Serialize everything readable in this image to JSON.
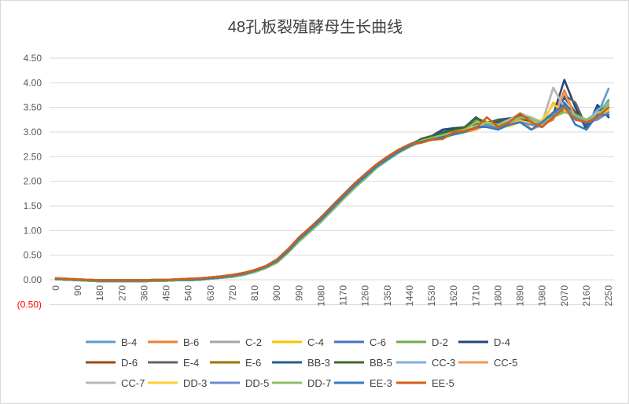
{
  "chart_data": {
    "type": "line",
    "title": "48孔板裂殖酵母生长曲线",
    "xlabel": "",
    "ylabel": "",
    "ylim": [
      -0.5,
      4.5
    ],
    "yticks": [
      "(0.50)",
      "0.00",
      "0.50",
      "1.00",
      "1.50",
      "2.00",
      "2.50",
      "3.00",
      "3.50",
      "4.00",
      "4.50"
    ],
    "ytick_values": [
      -0.5,
      0,
      0.5,
      1,
      1.5,
      2,
      2.5,
      3,
      3.5,
      4,
      4.5
    ],
    "negative_tick_color": "#FF0000",
    "xticks": [
      "0",
      "90",
      "180",
      "270",
      "360",
      "450",
      "540",
      "630",
      "720",
      "810",
      "900",
      "990",
      "1080",
      "1170",
      "1260",
      "1350",
      "1440",
      "1530",
      "1620",
      "1710",
      "1800",
      "1890",
      "1980",
      "2070",
      "2160",
      "2250"
    ],
    "x": [
      0,
      45,
      90,
      135,
      180,
      225,
      270,
      315,
      360,
      405,
      450,
      495,
      540,
      585,
      630,
      675,
      720,
      765,
      810,
      855,
      900,
      945,
      990,
      1035,
      1080,
      1125,
      1170,
      1215,
      1260,
      1305,
      1350,
      1395,
      1440,
      1485,
      1530,
      1575,
      1620,
      1665,
      1710,
      1755,
      1800,
      1845,
      1890,
      1935,
      1980,
      2025,
      2070,
      2115,
      2160,
      2205,
      2250
    ],
    "grid": true,
    "legend": "bottom",
    "series": [
      {
        "name": "B-4",
        "color": "#5B9BD5",
        "values": [
          0.02,
          0.01,
          0,
          -0.01,
          -0.02,
          -0.02,
          -0.02,
          -0.02,
          -0.02,
          -0.01,
          -0.01,
          0,
          0,
          0.01,
          0.03,
          0.05,
          0.08,
          0.12,
          0.18,
          0.26,
          0.38,
          0.58,
          0.82,
          1.02,
          1.22,
          1.45,
          1.68,
          1.9,
          2.1,
          2.3,
          2.45,
          2.6,
          2.72,
          2.82,
          2.9,
          2.95,
          3.02,
          3.08,
          3.15,
          3.12,
          3.1,
          3.2,
          3.22,
          3.15,
          3.2,
          3.35,
          3.6,
          3.3,
          3.2,
          3.35,
          3.88
        ]
      },
      {
        "name": "B-6",
        "color": "#ED7D31",
        "values": [
          0.03,
          0.02,
          0.01,
          0,
          -0.01,
          -0.01,
          -0.01,
          -0.01,
          -0.01,
          0,
          0,
          0.01,
          0.02,
          0.03,
          0.05,
          0.07,
          0.1,
          0.14,
          0.2,
          0.28,
          0.41,
          0.62,
          0.86,
          1.06,
          1.27,
          1.5,
          1.73,
          1.95,
          2.15,
          2.34,
          2.5,
          2.64,
          2.75,
          2.78,
          2.85,
          2.9,
          2.98,
          3.0,
          3.05,
          3.2,
          3.05,
          3.15,
          3.3,
          3.05,
          3.15,
          3.25,
          3.85,
          3.3,
          3.2,
          3.3,
          3.55
        ]
      },
      {
        "name": "C-2",
        "color": "#A5A5A5",
        "values": [
          0.01,
          0,
          -0.01,
          -0.02,
          -0.03,
          -0.03,
          -0.03,
          -0.03,
          -0.03,
          -0.02,
          -0.02,
          -0.01,
          -0.01,
          0,
          0.02,
          0.04,
          0.06,
          0.1,
          0.16,
          0.24,
          0.35,
          0.55,
          0.78,
          0.98,
          1.18,
          1.41,
          1.64,
          1.86,
          2.06,
          2.27,
          2.43,
          2.58,
          2.7,
          2.8,
          2.86,
          2.88,
          2.95,
          3.0,
          3.12,
          3.15,
          3.18,
          3.2,
          3.35,
          3.28,
          3.2,
          3.9,
          3.5,
          3.3,
          3.25,
          3.4,
          3.5
        ]
      },
      {
        "name": "C-4",
        "color": "#FFC000",
        "values": [
          0.02,
          0.01,
          0,
          -0.01,
          -0.02,
          -0.02,
          -0.02,
          -0.02,
          -0.02,
          -0.01,
          -0.01,
          0,
          0,
          0.01,
          0.03,
          0.05,
          0.08,
          0.12,
          0.18,
          0.26,
          0.38,
          0.58,
          0.82,
          1.02,
          1.22,
          1.45,
          1.68,
          1.9,
          2.1,
          2.3,
          2.45,
          2.6,
          2.72,
          2.81,
          2.88,
          2.93,
          3.0,
          3.06,
          3.1,
          3.18,
          3.1,
          3.12,
          3.2,
          3.22,
          3.15,
          3.6,
          3.45,
          3.35,
          3.2,
          3.3,
          3.6
        ]
      },
      {
        "name": "C-6",
        "color": "#4472C4",
        "values": [
          0.03,
          0.02,
          0.01,
          0,
          -0.01,
          -0.01,
          -0.01,
          -0.01,
          -0.01,
          0,
          0,
          0.01,
          0.02,
          0.03,
          0.05,
          0.07,
          0.1,
          0.14,
          0.2,
          0.28,
          0.41,
          0.62,
          0.86,
          1.06,
          1.27,
          1.5,
          1.73,
          1.95,
          2.15,
          2.34,
          2.5,
          2.64,
          2.75,
          2.79,
          2.87,
          2.9,
          2.98,
          3.04,
          3.08,
          3.14,
          3.08,
          3.15,
          3.22,
          3.18,
          3.1,
          3.4,
          3.6,
          3.3,
          3.15,
          3.28,
          3.45
        ]
      },
      {
        "name": "D-2",
        "color": "#70AD47",
        "values": [
          0.01,
          0,
          -0.01,
          -0.02,
          -0.03,
          -0.03,
          -0.03,
          -0.03,
          -0.03,
          -0.02,
          -0.02,
          -0.01,
          -0.01,
          0,
          0.02,
          0.04,
          0.06,
          0.1,
          0.16,
          0.24,
          0.35,
          0.55,
          0.78,
          0.98,
          1.18,
          1.41,
          1.64,
          1.86,
          2.06,
          2.27,
          2.43,
          2.58,
          2.7,
          2.83,
          2.9,
          2.95,
          3.02,
          3.05,
          3.25,
          3.2,
          3.15,
          3.2,
          3.3,
          3.25,
          3.2,
          3.3,
          3.45,
          3.35,
          3.2,
          3.35,
          3.65
        ]
      },
      {
        "name": "D-4",
        "color": "#264478",
        "values": [
          0.02,
          0.01,
          0,
          -0.01,
          -0.02,
          -0.02,
          -0.02,
          -0.02,
          -0.02,
          -0.01,
          -0.01,
          0,
          0,
          0.01,
          0.03,
          0.05,
          0.08,
          0.12,
          0.18,
          0.26,
          0.38,
          0.58,
          0.82,
          1.02,
          1.22,
          1.45,
          1.68,
          1.9,
          2.1,
          2.3,
          2.45,
          2.6,
          2.72,
          2.85,
          2.92,
          3.05,
          3.08,
          3.1,
          3.3,
          3.15,
          3.2,
          3.25,
          3.3,
          3.18,
          3.15,
          3.35,
          4.06,
          3.5,
          3.05,
          3.55,
          3.3
        ]
      },
      {
        "name": "D-6",
        "color": "#9E480E",
        "values": [
          0.03,
          0.02,
          0.01,
          0,
          -0.01,
          -0.01,
          -0.01,
          -0.01,
          -0.01,
          0,
          0,
          0.01,
          0.02,
          0.03,
          0.05,
          0.07,
          0.1,
          0.14,
          0.2,
          0.28,
          0.41,
          0.62,
          0.86,
          1.06,
          1.27,
          1.5,
          1.73,
          1.95,
          2.15,
          2.34,
          2.5,
          2.64,
          2.75,
          2.8,
          2.86,
          2.92,
          2.98,
          3.05,
          3.12,
          3.14,
          3.12,
          3.2,
          3.28,
          3.2,
          3.2,
          3.3,
          3.5,
          3.35,
          3.2,
          3.3,
          3.4
        ]
      },
      {
        "name": "E-4",
        "color": "#636363",
        "values": [
          0.01,
          0,
          -0.01,
          -0.02,
          -0.03,
          -0.03,
          -0.03,
          -0.03,
          -0.03,
          -0.02,
          -0.02,
          -0.01,
          -0.01,
          0,
          0.02,
          0.04,
          0.06,
          0.1,
          0.16,
          0.24,
          0.35,
          0.55,
          0.78,
          0.98,
          1.18,
          1.41,
          1.64,
          1.86,
          2.06,
          2.27,
          2.43,
          2.58,
          2.7,
          2.8,
          2.85,
          2.9,
          3.0,
          3.02,
          3.15,
          3.18,
          3.12,
          3.22,
          3.35,
          3.3,
          3.15,
          3.3,
          3.75,
          3.6,
          3.1,
          3.45,
          3.5
        ]
      },
      {
        "name": "E-6",
        "color": "#997300",
        "values": [
          0.02,
          0.01,
          0,
          -0.01,
          -0.02,
          -0.02,
          -0.02,
          -0.02,
          -0.02,
          -0.01,
          -0.01,
          0,
          0,
          0.01,
          0.03,
          0.05,
          0.08,
          0.12,
          0.18,
          0.26,
          0.38,
          0.58,
          0.82,
          1.02,
          1.22,
          1.45,
          1.68,
          1.9,
          2.1,
          2.3,
          2.45,
          2.6,
          2.72,
          2.82,
          2.88,
          2.93,
          3.0,
          3.06,
          3.1,
          3.16,
          3.14,
          3.2,
          3.25,
          3.22,
          3.2,
          3.3,
          3.5,
          3.35,
          3.25,
          3.35,
          3.45
        ]
      },
      {
        "name": "BB-3",
        "color": "#255E91",
        "values": [
          0.03,
          0.02,
          0.01,
          0,
          -0.01,
          -0.01,
          -0.01,
          -0.01,
          -0.01,
          0,
          0,
          0.01,
          0.02,
          0.03,
          0.05,
          0.07,
          0.1,
          0.14,
          0.2,
          0.28,
          0.41,
          0.62,
          0.86,
          1.06,
          1.27,
          1.5,
          1.73,
          1.95,
          2.15,
          2.34,
          2.5,
          2.64,
          2.75,
          2.84,
          2.9,
          3.0,
          3.05,
          3.1,
          3.2,
          3.18,
          3.25,
          3.28,
          3.3,
          3.2,
          3.15,
          3.3,
          3.7,
          3.4,
          3.1,
          3.5,
          3.35
        ]
      },
      {
        "name": "BB-5",
        "color": "#43682B",
        "values": [
          0.01,
          0,
          -0.01,
          -0.02,
          -0.03,
          -0.03,
          -0.03,
          -0.03,
          -0.03,
          -0.02,
          -0.02,
          -0.01,
          -0.01,
          0,
          0.02,
          0.04,
          0.06,
          0.1,
          0.16,
          0.24,
          0.35,
          0.55,
          0.78,
          0.98,
          1.18,
          1.41,
          1.64,
          1.86,
          2.06,
          2.27,
          2.43,
          2.58,
          2.7,
          2.86,
          2.92,
          2.98,
          3.05,
          3.1,
          3.28,
          3.2,
          3.22,
          3.25,
          3.32,
          3.25,
          3.2,
          3.3,
          3.55,
          3.4,
          3.2,
          3.4,
          3.5
        ]
      },
      {
        "name": "CC-3",
        "color": "#7CAFDD",
        "values": [
          0.02,
          0.01,
          0,
          -0.01,
          -0.02,
          -0.02,
          -0.02,
          -0.02,
          -0.02,
          -0.01,
          -0.01,
          0,
          0,
          0.01,
          0.03,
          0.05,
          0.08,
          0.12,
          0.18,
          0.26,
          0.38,
          0.58,
          0.82,
          1.02,
          1.22,
          1.45,
          1.68,
          1.9,
          2.1,
          2.3,
          2.45,
          2.6,
          2.72,
          2.8,
          2.88,
          2.92,
          2.96,
          3.02,
          3.08,
          3.12,
          3.1,
          3.2,
          3.3,
          3.25,
          3.15,
          3.3,
          3.5,
          3.3,
          3.2,
          3.45,
          3.6
        ]
      },
      {
        "name": "CC-5",
        "color": "#F1975A",
        "values": [
          0.03,
          0.02,
          0.01,
          0,
          -0.01,
          -0.01,
          -0.01,
          -0.01,
          -0.01,
          0,
          0,
          0.01,
          0.02,
          0.03,
          0.05,
          0.07,
          0.1,
          0.14,
          0.2,
          0.28,
          0.41,
          0.62,
          0.86,
          1.06,
          1.27,
          1.5,
          1.73,
          1.95,
          2.15,
          2.34,
          2.5,
          2.64,
          2.75,
          2.78,
          2.84,
          2.88,
          2.98,
          3.02,
          3.05,
          3.15,
          3.05,
          3.18,
          3.25,
          3.05,
          3.15,
          3.3,
          3.8,
          3.3,
          3.2,
          3.3,
          3.5
        ]
      },
      {
        "name": "CC-7",
        "color": "#B7B7B7",
        "values": [
          0.01,
          0,
          -0.01,
          -0.02,
          -0.03,
          -0.03,
          -0.03,
          -0.03,
          -0.03,
          -0.02,
          -0.02,
          -0.01,
          -0.01,
          0,
          0.02,
          0.04,
          0.06,
          0.1,
          0.16,
          0.24,
          0.35,
          0.55,
          0.78,
          0.98,
          1.18,
          1.41,
          1.64,
          1.86,
          2.06,
          2.27,
          2.43,
          2.58,
          2.7,
          2.8,
          2.86,
          2.9,
          2.95,
          3.0,
          3.1,
          3.2,
          3.15,
          3.25,
          3.38,
          3.3,
          3.2,
          3.9,
          3.5,
          3.35,
          3.2,
          3.4,
          3.45
        ]
      },
      {
        "name": "DD-3",
        "color": "#FFCD33",
        "values": [
          0.02,
          0.01,
          0,
          -0.01,
          -0.02,
          -0.02,
          -0.02,
          -0.02,
          -0.02,
          -0.01,
          -0.01,
          0,
          0,
          0.01,
          0.03,
          0.05,
          0.08,
          0.12,
          0.18,
          0.26,
          0.38,
          0.58,
          0.82,
          1.02,
          1.22,
          1.45,
          1.68,
          1.9,
          2.1,
          2.3,
          2.45,
          2.6,
          2.72,
          2.81,
          2.87,
          2.92,
          3.0,
          3.05,
          3.12,
          3.2,
          3.1,
          3.15,
          3.22,
          3.18,
          3.25,
          3.55,
          3.45,
          3.3,
          3.2,
          3.3,
          3.45
        ]
      },
      {
        "name": "DD-5",
        "color": "#698ED0",
        "values": [
          0.03,
          0.02,
          0.01,
          0,
          -0.01,
          -0.01,
          -0.01,
          -0.01,
          -0.01,
          0,
          0,
          0.01,
          0.02,
          0.03,
          0.05,
          0.07,
          0.1,
          0.14,
          0.2,
          0.28,
          0.41,
          0.62,
          0.86,
          1.06,
          1.27,
          1.5,
          1.73,
          1.95,
          2.15,
          2.34,
          2.5,
          2.64,
          2.75,
          2.8,
          2.86,
          2.9,
          2.98,
          3.03,
          3.08,
          3.15,
          3.08,
          3.15,
          3.2,
          3.15,
          3.1,
          3.35,
          3.55,
          3.3,
          3.2,
          3.25,
          3.4
        ]
      },
      {
        "name": "DD-7",
        "color": "#8CC168",
        "values": [
          0.01,
          0,
          -0.01,
          -0.02,
          -0.03,
          -0.03,
          -0.03,
          -0.03,
          -0.03,
          -0.02,
          -0.02,
          -0.01,
          -0.01,
          0,
          0.02,
          0.04,
          0.06,
          0.1,
          0.16,
          0.24,
          0.35,
          0.55,
          0.78,
          0.98,
          1.18,
          1.41,
          1.64,
          1.86,
          2.06,
          2.27,
          2.43,
          2.58,
          2.7,
          2.82,
          2.88,
          2.94,
          3.0,
          3.05,
          3.2,
          3.18,
          3.15,
          3.2,
          3.3,
          3.25,
          3.2,
          3.3,
          3.4,
          3.35,
          3.25,
          3.35,
          3.55
        ]
      },
      {
        "name": "EE-3",
        "color": "#327DC2",
        "values": [
          0.02,
          0.01,
          0,
          -0.01,
          -0.02,
          -0.02,
          -0.02,
          -0.02,
          -0.02,
          -0.01,
          -0.01,
          0,
          0,
          0.01,
          0.03,
          0.05,
          0.08,
          0.12,
          0.18,
          0.26,
          0.38,
          0.58,
          0.82,
          1.02,
          1.22,
          1.45,
          1.68,
          1.9,
          2.1,
          2.3,
          2.45,
          2.6,
          2.72,
          2.8,
          2.85,
          2.9,
          2.95,
          3.0,
          3.1,
          3.1,
          3.05,
          3.15,
          3.2,
          3.05,
          3.2,
          3.4,
          3.55,
          3.15,
          3.05,
          3.35,
          3.35
        ]
      },
      {
        "name": "EE-5",
        "color": "#D26012",
        "values": [
          0.03,
          0.02,
          0.01,
          0,
          -0.01,
          -0.01,
          -0.01,
          -0.01,
          -0.01,
          0,
          0,
          0.01,
          0.02,
          0.03,
          0.05,
          0.07,
          0.1,
          0.14,
          0.2,
          0.28,
          0.41,
          0.62,
          0.86,
          1.06,
          1.27,
          1.5,
          1.73,
          1.95,
          2.15,
          2.34,
          2.5,
          2.64,
          2.75,
          2.78,
          2.84,
          2.86,
          3.0,
          3.02,
          3.08,
          3.3,
          3.1,
          3.2,
          3.38,
          3.2,
          3.1,
          3.3,
          3.5,
          3.25,
          3.2,
          3.3,
          3.5
        ]
      }
    ]
  }
}
